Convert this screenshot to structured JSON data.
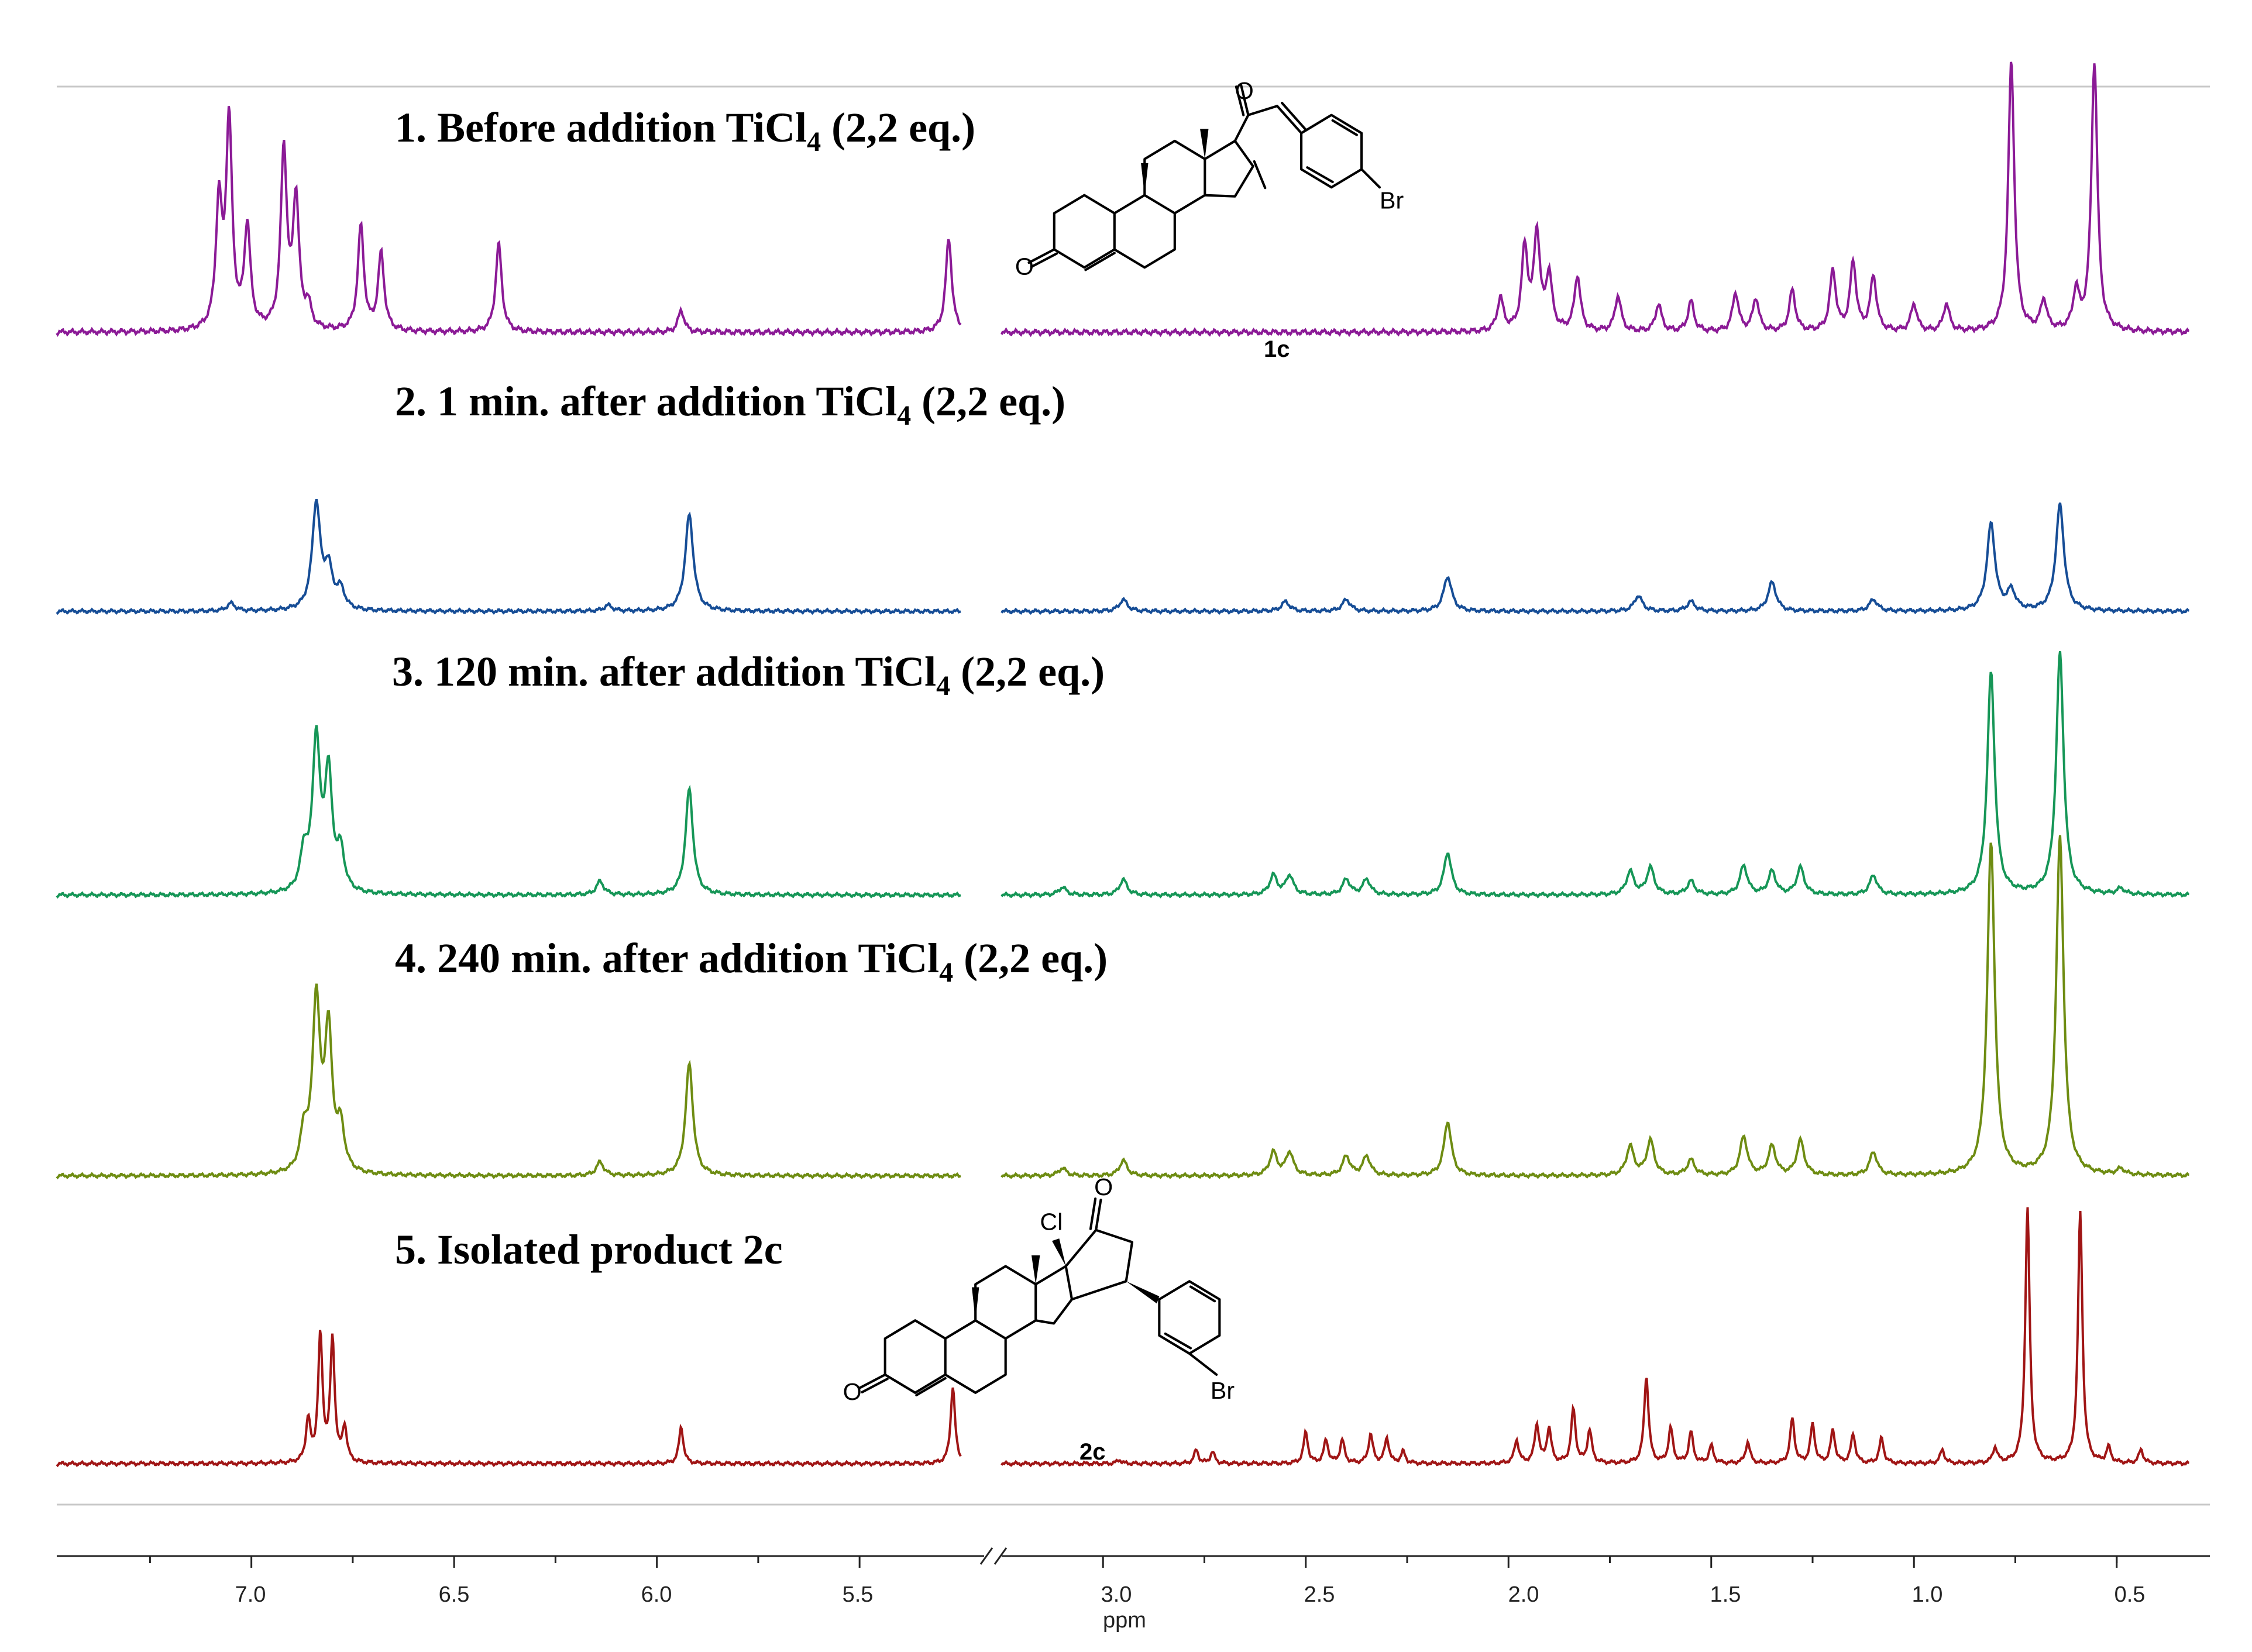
{
  "chart_data": {
    "type": "line",
    "title": "",
    "xlabel": "ppm",
    "ylabel": "",
    "xlim": [
      7.48,
      0.32
    ],
    "axis_break": [
      5.25,
      3.25
    ],
    "xticks": [
      "7.0",
      "6.5",
      "6.0",
      "5.5",
      "3.0",
      "2.5",
      "2.0",
      "1.5",
      "1.0",
      "0.5"
    ],
    "series": [
      {
        "name": "1. Before addition TiCl4 (2,2 eq.)",
        "label_main": "1. Before addition TiCl",
        "label_sub": "4",
        "label_tail": " (2,2 eq.)",
        "color": "#8B1A96",
        "peaks": [
          [
            7.08,
            0.45
          ],
          [
            7.055,
            0.75
          ],
          [
            7.01,
            0.37
          ],
          [
            6.92,
            0.65
          ],
          [
            6.89,
            0.47
          ],
          [
            6.86,
            0.08
          ],
          [
            6.73,
            0.38
          ],
          [
            6.68,
            0.28
          ],
          [
            6.39,
            0.32
          ],
          [
            5.94,
            0.08
          ],
          [
            5.28,
            0.34
          ],
          [
            2.02,
            0.12
          ],
          [
            1.96,
            0.3
          ],
          [
            1.93,
            0.35
          ],
          [
            1.9,
            0.2
          ],
          [
            1.83,
            0.2
          ],
          [
            1.73,
            0.13
          ],
          [
            1.63,
            0.1
          ],
          [
            1.55,
            0.11
          ],
          [
            1.44,
            0.14
          ],
          [
            1.39,
            0.12
          ],
          [
            1.3,
            0.15
          ],
          [
            1.2,
            0.22
          ],
          [
            1.15,
            0.25
          ],
          [
            1.1,
            0.2
          ],
          [
            1.0,
            0.1
          ],
          [
            0.92,
            0.1
          ],
          [
            0.76,
            0.98
          ],
          [
            0.68,
            0.11
          ],
          [
            0.6,
            0.14
          ],
          [
            0.555,
            0.98
          ]
        ]
      },
      {
        "name": "2. 1 min. after addition TiCl4 (2,2 eq.)",
        "label_main": "2. 1 min. after addition TiCl",
        "label_sub": "4",
        "label_tail": " (2,2 eq.)",
        "color": "#164D96",
        "peaks": [
          [
            7.05,
            0.04
          ],
          [
            6.84,
            0.55
          ],
          [
            6.81,
            0.2
          ],
          [
            6.78,
            0.1
          ],
          [
            6.12,
            0.03
          ],
          [
            5.92,
            0.5
          ],
          [
            2.95,
            0.06
          ],
          [
            2.55,
            0.05
          ],
          [
            2.4,
            0.06
          ],
          [
            2.15,
            0.18
          ],
          [
            1.68,
            0.08
          ],
          [
            1.55,
            0.05
          ],
          [
            1.35,
            0.15
          ],
          [
            1.1,
            0.06
          ],
          [
            0.81,
            0.45
          ],
          [
            0.76,
            0.1
          ],
          [
            0.64,
            0.55
          ]
        ]
      },
      {
        "name": "3. 120 min. after addition TiCl4 (2,2 eq.)",
        "label_main": "3. 120 min. after addition TiCl",
        "label_sub": "4",
        "label_tail": " (2,2 eq.)",
        "color": "#169657",
        "peaks": [
          [
            6.87,
            0.2
          ],
          [
            6.84,
            0.78
          ],
          [
            6.81,
            0.6
          ],
          [
            6.78,
            0.2
          ],
          [
            6.14,
            0.07
          ],
          [
            5.92,
            0.55
          ],
          [
            3.1,
            0.04
          ],
          [
            2.95,
            0.08
          ],
          [
            2.58,
            0.1
          ],
          [
            2.54,
            0.1
          ],
          [
            2.4,
            0.08
          ],
          [
            2.35,
            0.08
          ],
          [
            2.15,
            0.22
          ],
          [
            1.7,
            0.12
          ],
          [
            1.65,
            0.14
          ],
          [
            1.55,
            0.07
          ],
          [
            1.42,
            0.15
          ],
          [
            1.35,
            0.12
          ],
          [
            1.28,
            0.14
          ],
          [
            1.1,
            0.1
          ],
          [
            0.81,
            1.15
          ],
          [
            0.64,
            1.25
          ],
          [
            0.49,
            0.03
          ]
        ]
      },
      {
        "name": "4. 240 min. after addition TiCl4 (2,2 eq.)",
        "label_main": "4. 240 min. after addition TiCl",
        "label_sub": "4",
        "label_tail": " (2,2 eq.)",
        "color": "#6E8C12",
        "peaks": [
          [
            6.87,
            0.2
          ],
          [
            6.84,
            0.88
          ],
          [
            6.81,
            0.72
          ],
          [
            6.78,
            0.22
          ],
          [
            6.14,
            0.07
          ],
          [
            5.92,
            0.58
          ],
          [
            3.1,
            0.04
          ],
          [
            2.95,
            0.08
          ],
          [
            2.58,
            0.12
          ],
          [
            2.54,
            0.12
          ],
          [
            2.4,
            0.1
          ],
          [
            2.35,
            0.1
          ],
          [
            2.15,
            0.28
          ],
          [
            1.7,
            0.15
          ],
          [
            1.65,
            0.18
          ],
          [
            1.55,
            0.08
          ],
          [
            1.42,
            0.2
          ],
          [
            1.35,
            0.15
          ],
          [
            1.28,
            0.18
          ],
          [
            1.1,
            0.12
          ],
          [
            0.81,
            1.72
          ],
          [
            0.64,
            1.75
          ],
          [
            0.49,
            0.03
          ]
        ]
      },
      {
        "name": "5. Isolated product 2c",
        "label_main": "5. Isolated product 2c",
        "label_sub": "",
        "label_tail": "",
        "color": "#A01515",
        "peaks": [
          [
            6.86,
            0.22
          ],
          [
            6.83,
            0.65
          ],
          [
            6.8,
            0.63
          ],
          [
            6.77,
            0.18
          ],
          [
            5.94,
            0.19
          ],
          [
            5.27,
            0.4
          ],
          [
            2.96,
            0.02
          ],
          [
            2.77,
            0.07
          ],
          [
            2.73,
            0.06
          ],
          [
            2.5,
            0.16
          ],
          [
            2.45,
            0.12
          ],
          [
            2.41,
            0.12
          ],
          [
            2.34,
            0.15
          ],
          [
            2.3,
            0.13
          ],
          [
            2.26,
            0.06
          ],
          [
            1.98,
            0.12
          ],
          [
            1.93,
            0.2
          ],
          [
            1.9,
            0.18
          ],
          [
            1.84,
            0.28
          ],
          [
            1.8,
            0.17
          ],
          [
            1.66,
            0.45
          ],
          [
            1.6,
            0.18
          ],
          [
            1.55,
            0.16
          ],
          [
            1.5,
            0.09
          ],
          [
            1.41,
            0.11
          ],
          [
            1.3,
            0.23
          ],
          [
            1.25,
            0.2
          ],
          [
            1.2,
            0.17
          ],
          [
            1.15,
            0.15
          ],
          [
            1.08,
            0.13
          ],
          [
            0.93,
            0.07
          ],
          [
            0.8,
            0.08
          ],
          [
            0.72,
            1.32
          ],
          [
            0.59,
            1.3
          ],
          [
            0.52,
            0.08
          ],
          [
            0.44,
            0.07
          ]
        ]
      }
    ],
    "annotations": {
      "compound_1c": "1c",
      "compound_2c": "2c",
      "oxygen": "O",
      "bromine": "Br",
      "chlorine": "Cl"
    }
  }
}
